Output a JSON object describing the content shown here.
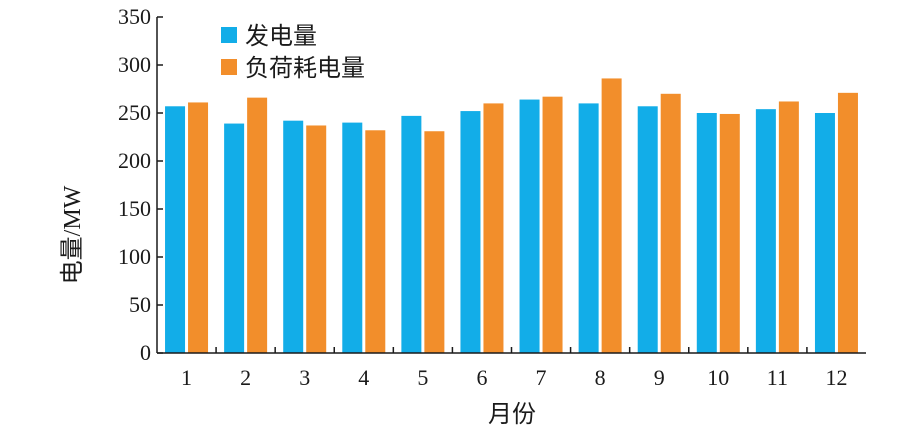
{
  "chart_data": {
    "type": "bar",
    "title": "",
    "xlabel": "月份",
    "ylabel": "电量/MW",
    "categories": [
      "1",
      "2",
      "3",
      "4",
      "5",
      "6",
      "7",
      "8",
      "9",
      "10",
      "11",
      "12"
    ],
    "series": [
      {
        "name": "发电量",
        "color": "#12ade8",
        "values": [
          257,
          239,
          242,
          240,
          247,
          252,
          264,
          260,
          257,
          250,
          254,
          250
        ]
      },
      {
        "name": "负荷耗电量",
        "color": "#f28e2b",
        "values": [
          261,
          266,
          237,
          232,
          231,
          260,
          267,
          286,
          270,
          249,
          262,
          271
        ]
      }
    ],
    "ylim": [
      0,
      350
    ],
    "yticks": [
      0,
      50,
      100,
      150,
      200,
      250,
      300,
      350
    ],
    "grid": false,
    "legend_position": "top-left"
  }
}
